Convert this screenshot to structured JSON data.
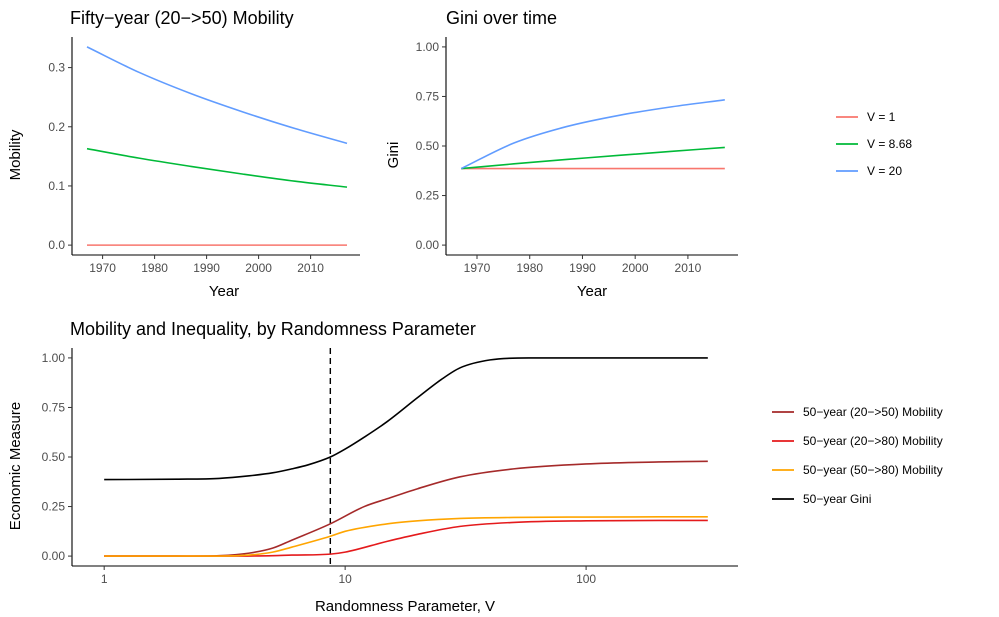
{
  "chart_data": [
    {
      "type": "line",
      "title": "Fifty−year (20−>50) Mobility",
      "xlabel": "Year",
      "ylabel": "Mobility",
      "xlim": [
        1967,
        2017
      ],
      "ylim": [
        0,
        0.335
      ],
      "xticks": [
        1970,
        1980,
        1990,
        2000,
        2010
      ],
      "xtick_labels": [
        "1970",
        "1980",
        "1990",
        "2000",
        "2010"
      ],
      "yticks": [
        0.0,
        0.1,
        0.2,
        0.3
      ],
      "ytick_labels": [
        "0.0",
        "0.1",
        "0.2",
        "0.3"
      ],
      "grid": false,
      "series": [
        {
          "name": "V = 1",
          "color": "#F8766D",
          "x": [
            1967,
            1977,
            1987,
            1997,
            2007,
            2017
          ],
          "y": [
            0,
            0,
            0,
            0,
            0,
            0
          ]
        },
        {
          "name": "V = 8.68",
          "color": "#00BA38",
          "x": [
            1967,
            1977,
            1987,
            1997,
            2007,
            2017
          ],
          "y": [
            0.163,
            0.147,
            0.133,
            0.12,
            0.108,
            0.098
          ]
        },
        {
          "name": "V = 20",
          "color": "#619CFF",
          "x": [
            1967,
            1977,
            1987,
            1997,
            2007,
            2017
          ],
          "y": [
            0.335,
            0.292,
            0.256,
            0.225,
            0.197,
            0.172
          ]
        }
      ]
    },
    {
      "type": "line",
      "title": "Gini over time",
      "xlabel": "Year",
      "ylabel": "Gini",
      "xlim": [
        1967,
        2017
      ],
      "ylim": [
        0,
        1
      ],
      "xticks": [
        1970,
        1980,
        1990,
        2000,
        2010
      ],
      "xtick_labels": [
        "1970",
        "1980",
        "1990",
        "2000",
        "2010"
      ],
      "yticks": [
        0,
        0.25,
        0.5,
        0.75,
        1.0
      ],
      "ytick_labels": [
        "0.00",
        "0.25",
        "0.50",
        "0.75",
        "1.00"
      ],
      "grid": false,
      "series": [
        {
          "name": "V = 1",
          "color": "#F8766D",
          "x": [
            1967,
            1977,
            1987,
            1997,
            2007,
            2017
          ],
          "y": [
            0.386,
            0.386,
            0.386,
            0.386,
            0.386,
            0.386
          ]
        },
        {
          "name": "V = 8.68",
          "color": "#00BA38",
          "x": [
            1967,
            1977,
            1987,
            1997,
            2007,
            2017
          ],
          "y": [
            0.386,
            0.41,
            0.432,
            0.453,
            0.473,
            0.493
          ]
        },
        {
          "name": "V = 20",
          "color": "#619CFF",
          "x": [
            1967,
            1977,
            1987,
            1997,
            2007,
            2017
          ],
          "y": [
            0.386,
            0.515,
            0.598,
            0.655,
            0.698,
            0.733
          ]
        }
      ]
    },
    {
      "type": "line",
      "title": "Mobility and Inequality, by Randomness Parameter",
      "xlabel": "Randomness Parameter, V",
      "ylabel": "Economic Measure",
      "xscale": "log",
      "xlim": [
        1,
        320
      ],
      "ylim": [
        0,
        1
      ],
      "xticks": [
        1,
        10,
        100
      ],
      "xtick_labels": [
        "1",
        "10",
        "100"
      ],
      "yticks": [
        0,
        0.25,
        0.5,
        0.75,
        1.0
      ],
      "ytick_labels": [
        "0.00",
        "0.25",
        "0.50",
        "0.75",
        "1.00"
      ],
      "grid": false,
      "vline_x": 8.68,
      "series": [
        {
          "name": "50−year (20−>50) Mobility",
          "color": "#A52A2A",
          "x": [
            1,
            2,
            3,
            4,
            5,
            6,
            8.68,
            12,
            15,
            20,
            30,
            50,
            100,
            200,
            320
          ],
          "y": [
            0,
            0,
            0.002,
            0.015,
            0.04,
            0.08,
            0.163,
            0.25,
            0.29,
            0.34,
            0.4,
            0.44,
            0.465,
            0.475,
            0.478
          ]
        },
        {
          "name": "50−year (20−>80) Mobility",
          "color": "#E41A1C",
          "x": [
            1,
            3,
            5,
            6,
            8.68,
            10,
            15,
            20,
            30,
            50,
            100,
            200,
            320
          ],
          "y": [
            0,
            0,
            0.002,
            0.005,
            0.01,
            0.02,
            0.075,
            0.11,
            0.15,
            0.17,
            0.178,
            0.18,
            0.18
          ]
        },
        {
          "name": "50−year (50−>80) Mobility",
          "color": "#FFA500",
          "x": [
            1,
            3,
            4,
            5,
            6,
            8.68,
            10,
            15,
            20,
            30,
            50,
            100,
            200,
            320
          ],
          "y": [
            0,
            0,
            0.005,
            0.02,
            0.045,
            0.1,
            0.125,
            0.163,
            0.178,
            0.19,
            0.195,
            0.197,
            0.198,
            0.198
          ]
        },
        {
          "name": "50−year Gini",
          "color": "#000000",
          "x": [
            1,
            2,
            3,
            4,
            5,
            6,
            7,
            8.68,
            10,
            12,
            15,
            20,
            25,
            30,
            40,
            60,
            100,
            320
          ],
          "y": [
            0.386,
            0.388,
            0.392,
            0.405,
            0.42,
            0.44,
            0.46,
            0.5,
            0.54,
            0.6,
            0.68,
            0.8,
            0.89,
            0.95,
            0.99,
            1.0,
            1.0,
            1.0
          ]
        }
      ]
    }
  ],
  "legend_top": {
    "position": "right",
    "items": [
      {
        "label": "V = 1",
        "color": "#F8766D"
      },
      {
        "label": "V = 8.68",
        "color": "#00BA38"
      },
      {
        "label": "V = 20",
        "color": "#619CFF"
      }
    ]
  },
  "legend_bottom": {
    "position": "right",
    "items": [
      {
        "label": "50−year (20−>50) Mobility",
        "color": "#A52A2A"
      },
      {
        "label": "50−year (20−>80) Mobility",
        "color": "#E41A1C"
      },
      {
        "label": "50−year (50−>80) Mobility",
        "color": "#FFA500"
      },
      {
        "label": "50−year Gini",
        "color": "#000000"
      }
    ]
  }
}
